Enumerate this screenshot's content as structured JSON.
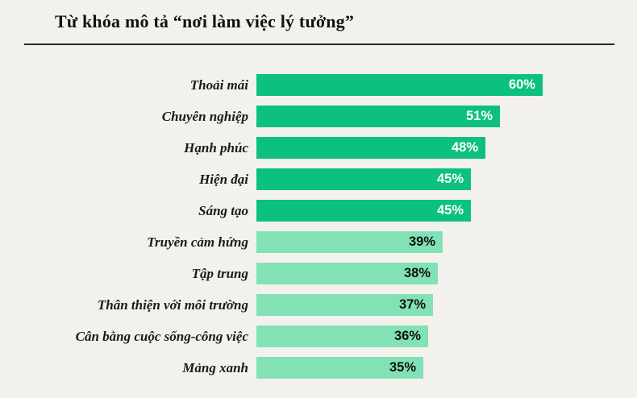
{
  "title": "Từ khóa mô tả “nơi làm việc lý tưởng”",
  "chart_data": {
    "type": "bar",
    "orientation": "horizontal",
    "title": "Từ khóa mô tả “nơi làm việc lý tưởng”",
    "categories": [
      "Thoải mái",
      "Chuyên nghiệp",
      "Hạnh phúc",
      "Hiện đại",
      "Sáng tạo",
      "Truyền cảm hứng",
      "Tập trung",
      "Thân thiện với môi trường",
      "Cân bằng cuộc sống-công việc",
      "Mảng xanh"
    ],
    "values": [
      60,
      51,
      48,
      45,
      45,
      39,
      38,
      37,
      36,
      35
    ],
    "value_suffix": "%",
    "value_labels": [
      "60%",
      "51%",
      "48%",
      "45%",
      "45%",
      "39%",
      "38%",
      "37%",
      "36%",
      "35%"
    ],
    "shades": [
      "dark",
      "dark",
      "dark",
      "dark",
      "dark",
      "light",
      "light",
      "light",
      "light",
      "light"
    ],
    "xlim": [
      0,
      65
    ],
    "grid": false,
    "legend": "none",
    "colors": {
      "bar_dark": "#0bc17d",
      "bar_light": "#82e2b6",
      "value_on_dark": "#ffffff",
      "value_on_light": "#111111",
      "background": "#f2f1ee",
      "title_text": "#111111",
      "divider": "#2b2b2b"
    }
  }
}
